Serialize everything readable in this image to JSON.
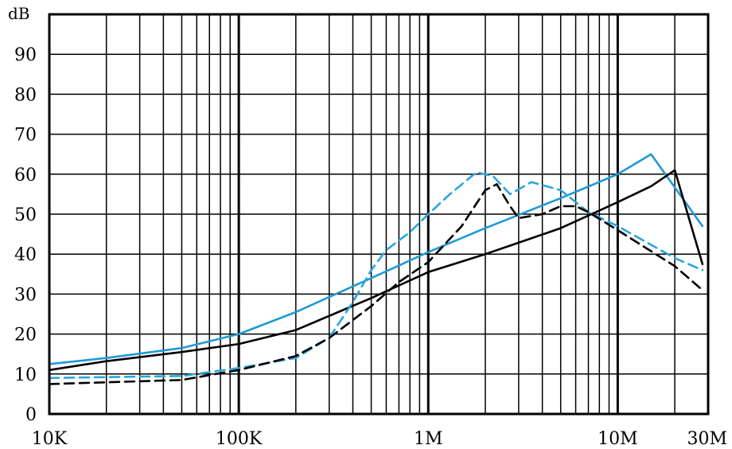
{
  "chart_data": {
    "type": "line",
    "y_unit": "dB",
    "x_scale": "log",
    "xlim": [
      10000,
      30000000
    ],
    "ylim": [
      0,
      100
    ],
    "grid": true,
    "x_tick_labels": [
      {
        "value": 10000,
        "label": "10K"
      },
      {
        "value": 100000,
        "label": "100K"
      },
      {
        "value": 1000000,
        "label": "1M"
      },
      {
        "value": 10000000,
        "label": "10M"
      },
      {
        "value": 30000000,
        "label": "30M"
      }
    ],
    "y_tick_labels": [
      {
        "value": 0,
        "label": "0"
      },
      {
        "value": 10,
        "label": "10"
      },
      {
        "value": 20,
        "label": "20"
      },
      {
        "value": 30,
        "label": "30"
      },
      {
        "value": 40,
        "label": "40"
      },
      {
        "value": 50,
        "label": "50"
      },
      {
        "value": 60,
        "label": "60"
      },
      {
        "value": 70,
        "label": "70"
      },
      {
        "value": 80,
        "label": "80"
      },
      {
        "value": 90,
        "label": "90"
      }
    ],
    "series": [
      {
        "color": "#1f9ad6",
        "dash": "solid",
        "points": [
          [
            10000,
            12.5
          ],
          [
            20000,
            14
          ],
          [
            50000,
            16.5
          ],
          [
            100000,
            20
          ],
          [
            200000,
            25.5
          ],
          [
            500000,
            34
          ],
          [
            1000000,
            40.5
          ],
          [
            2000000,
            46.5
          ],
          [
            5000000,
            54
          ],
          [
            10000000,
            60
          ],
          [
            15000000,
            65
          ],
          [
            20000,
            14
          ],
          [
            28000000,
            47
          ]
        ]
      },
      {
        "color": "#000000",
        "dash": "solid",
        "points": [
          [
            10000,
            11
          ],
          [
            20000,
            13.2
          ],
          [
            50000,
            15.5
          ],
          [
            100000,
            17.5
          ],
          [
            200000,
            21
          ],
          [
            500000,
            29
          ],
          [
            1000000,
            35.5
          ],
          [
            2000000,
            40
          ],
          [
            5000000,
            46.5
          ],
          [
            10000000,
            53
          ],
          [
            15000000,
            57
          ],
          [
            20000000,
            61
          ],
          [
            28000000,
            37.5
          ]
        ]
      },
      {
        "color": "#2aa5dd",
        "dash": "dashed",
        "points": [
          [
            10000,
            9
          ],
          [
            50000,
            9.5
          ],
          [
            100000,
            11.5
          ],
          [
            200000,
            14
          ],
          [
            300000,
            19
          ],
          [
            400000,
            28
          ],
          [
            500000,
            36
          ],
          [
            600000,
            41
          ],
          [
            800000,
            45.5
          ],
          [
            1000000,
            50
          ],
          [
            1300000,
            55
          ],
          [
            1800000,
            60.5
          ],
          [
            2200000,
            59.5
          ],
          [
            2700000,
            55
          ],
          [
            3500000,
            58
          ],
          [
            5000000,
            56
          ],
          [
            7000000,
            50.5
          ],
          [
            10000000,
            47
          ],
          [
            20000000,
            39
          ],
          [
            28000000,
            36
          ]
        ]
      },
      {
        "color": "#000000",
        "dash": "dashed",
        "points": [
          [
            10000,
            7.5
          ],
          [
            50000,
            8.5
          ],
          [
            100000,
            11
          ],
          [
            200000,
            14.5
          ],
          [
            300000,
            19
          ],
          [
            500000,
            27
          ],
          [
            700000,
            33
          ],
          [
            1000000,
            38
          ],
          [
            1500000,
            47
          ],
          [
            2000000,
            56
          ],
          [
            2300000,
            57.5
          ],
          [
            2700000,
            52
          ],
          [
            3000000,
            49
          ],
          [
            4000000,
            50
          ],
          [
            5000000,
            52
          ],
          [
            6000000,
            52
          ],
          [
            7000000,
            50.5
          ],
          [
            10000000,
            46
          ],
          [
            20000000,
            37
          ],
          [
            28000000,
            31
          ]
        ]
      }
    ]
  }
}
